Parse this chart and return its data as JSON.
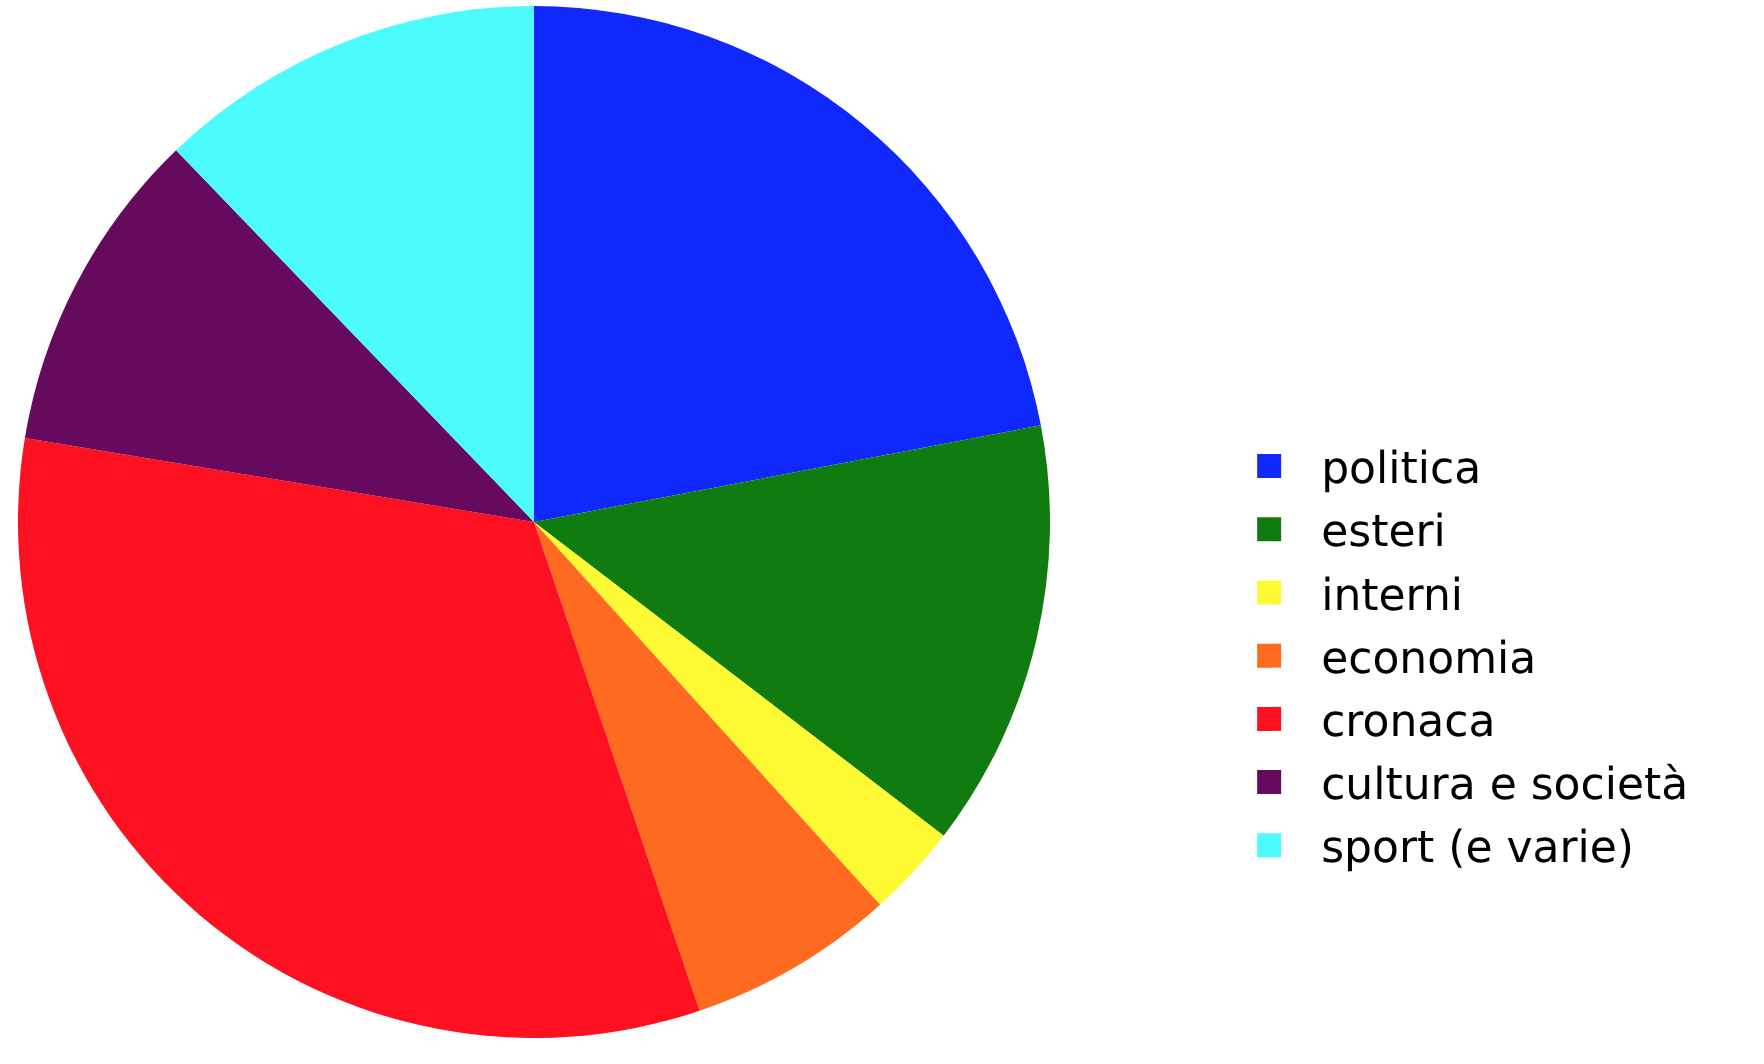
{
  "chart_data": {
    "type": "pie",
    "categories": [
      "politica",
      "esteri",
      "interni",
      "economia",
      "cronaca",
      "cultura e società",
      "sport (e varie)"
    ],
    "values": [
      22.0,
      13.4,
      2.9,
      6.5,
      32.8,
      10.2,
      12.2
    ],
    "colors": [
      "#1028fc",
      "#107c10",
      "#fdfa33",
      "#fd6a20",
      "#fd1020",
      "#660a5e",
      "#4cfcfc"
    ],
    "legend": "right"
  }
}
